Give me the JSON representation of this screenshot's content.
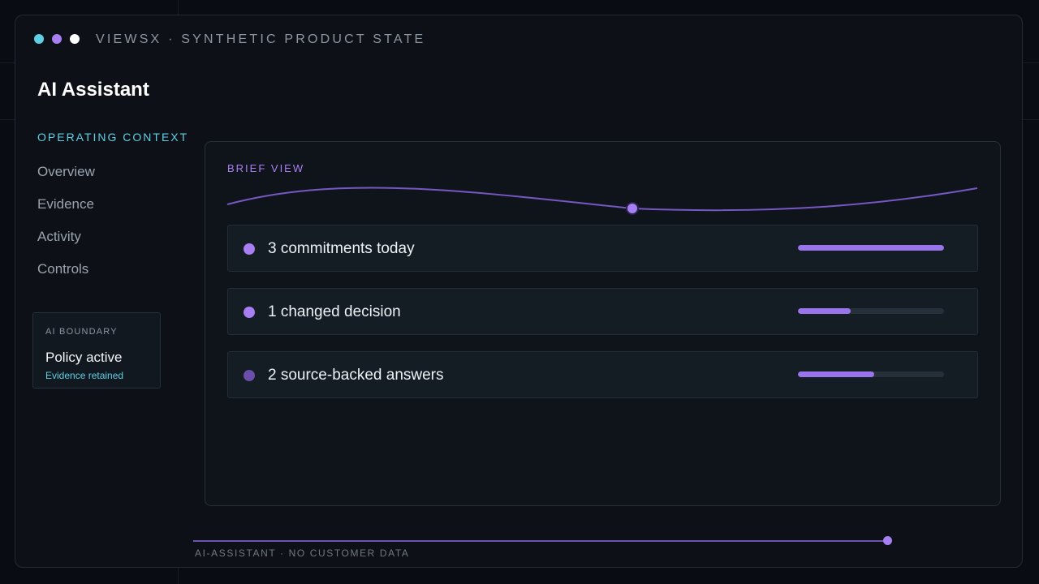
{
  "header": {
    "brand": "VIEWSX · SYNTHETIC PRODUCT STATE",
    "dots": [
      {
        "name": "cyan-dot",
        "color": "#5fd0e3"
      },
      {
        "name": "purple-dot",
        "color": "#a77ff3"
      },
      {
        "name": "white-dot",
        "color": "#ffffff"
      }
    ]
  },
  "sidebar": {
    "title": "AI Assistant",
    "section_label": "OPERATING CONTEXT",
    "items": [
      {
        "label": "Overview"
      },
      {
        "label": "Evidence"
      },
      {
        "label": "Activity"
      },
      {
        "label": "Controls"
      }
    ],
    "boundary": {
      "label": "AI BOUNDARY",
      "status": "Policy active",
      "sub": "Evidence retained"
    }
  },
  "main": {
    "label": "BRIEF VIEW",
    "rows": [
      {
        "text": "3 commitments today",
        "progress": 1.0,
        "bullet_color": "#a77ff3"
      },
      {
        "text": "1 changed decision",
        "progress": 0.36,
        "bullet_color": "#a77ff3"
      },
      {
        "text": "2 source-backed answers",
        "progress": 0.52,
        "bullet_color": "#6a4eaa"
      }
    ]
  },
  "footer": {
    "text": "AI-ASSISTANT · NO CUSTOMER DATA",
    "progress": 0.998
  },
  "colors": {
    "accent": "#a77ff3",
    "cyan": "#5fd0e3",
    "background": "#0d1117"
  }
}
